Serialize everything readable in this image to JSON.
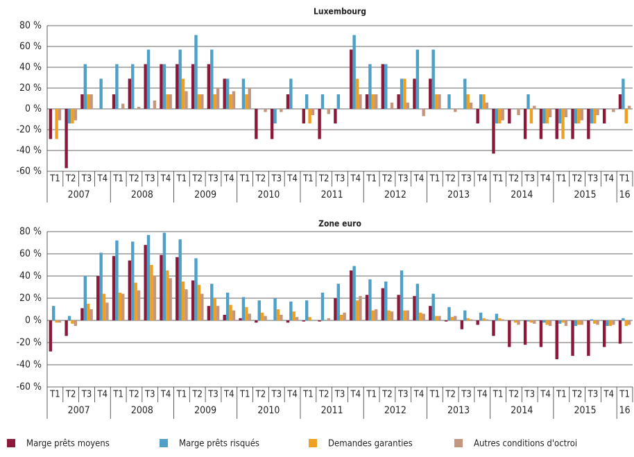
{
  "chart_data": [
    {
      "type": "bar",
      "title": "Luxembourg",
      "categories": [
        "T1",
        "T2",
        "T3",
        "T4",
        "T1",
        "T2",
        "T3",
        "T4",
        "T1",
        "T2",
        "T3",
        "T4",
        "T1",
        "T2",
        "T3",
        "T4",
        "T1",
        "T2",
        "T3",
        "T4",
        "T1",
        "T2",
        "T3",
        "T4",
        "T1",
        "T2",
        "T3",
        "T4",
        "T1",
        "T2",
        "T3",
        "T4",
        "T1",
        "T2",
        "T3",
        "T4",
        "T1"
      ],
      "years": [
        "2007",
        "2008",
        "2009",
        "2010",
        "2011",
        "2012",
        "2013",
        "2014",
        "2015",
        "16"
      ],
      "ylim": [
        -60,
        80
      ],
      "yticks": [
        {
          "value": -60,
          "label": "-60 %"
        },
        {
          "value": -40,
          "label": "-40 %"
        },
        {
          "value": -20,
          "label": "-20 %"
        },
        {
          "value": 0,
          "label": "0 %"
        },
        {
          "value": 20,
          "label": "20 %"
        },
        {
          "value": 40,
          "label": "40 %"
        },
        {
          "value": 60,
          "label": "60 %"
        },
        {
          "value": 80,
          "label": "80 %"
        }
      ],
      "grid": true,
      "series": [
        {
          "name": "Marge prêts moyens",
          "color": "#8b1a3a",
          "values": [
            -29,
            -57,
            14,
            0,
            14,
            29,
            43,
            43,
            43,
            43,
            43,
            29,
            0,
            -29,
            -29,
            14,
            -14,
            -29,
            -14,
            57,
            14,
            43,
            14,
            29,
            29,
            0,
            0,
            -14,
            -43,
            -14,
            -29,
            -29,
            -29,
            -29,
            -29,
            -14,
            14
          ]
        },
        {
          "name": "Marge prêts risqués",
          "color": "#4fa0c8",
          "values": [
            0,
            -14,
            43,
            29,
            43,
            43,
            57,
            43,
            57,
            71,
            57,
            29,
            29,
            0,
            -14,
            29,
            14,
            14,
            14,
            71,
            43,
            43,
            29,
            57,
            57,
            14,
            29,
            14,
            -14,
            0,
            14,
            -14,
            -14,
            -14,
            -14,
            0,
            29
          ]
        },
        {
          "name": "Demandes garanties",
          "color": "#f0a020",
          "values": [
            -29,
            -14,
            14,
            0,
            0,
            0,
            0,
            14,
            29,
            14,
            14,
            14,
            14,
            0,
            0,
            0,
            -14,
            0,
            0,
            29,
            14,
            0,
            29,
            0,
            14,
            0,
            14,
            14,
            -14,
            0,
            -14,
            -14,
            -29,
            -14,
            -14,
            0,
            -14
          ]
        },
        {
          "name": "Autres conditions d'octroi",
          "color": "#c4967e",
          "values": [
            -11,
            -11,
            14,
            0,
            5,
            2,
            8,
            14,
            17,
            14,
            20,
            17,
            20,
            -3,
            -3,
            0,
            -6,
            -5,
            0,
            14,
            14,
            6,
            6,
            -7,
            14,
            -3,
            6,
            6,
            -11,
            -6,
            3,
            -8,
            -8,
            -11,
            -6,
            -3,
            3
          ]
        }
      ]
    },
    {
      "type": "bar",
      "title": "Zone euro",
      "categories": [
        "T1",
        "T2",
        "T3",
        "T4",
        "T1",
        "T2",
        "T3",
        "T4",
        "T1",
        "T2",
        "T3",
        "T4",
        "T1",
        "T2",
        "T3",
        "T4",
        "T1",
        "T2",
        "T3",
        "T4",
        "T1",
        "T2",
        "T3",
        "T4",
        "T1",
        "T2",
        "T3",
        "T4",
        "T1",
        "T2",
        "T3",
        "T4",
        "T1",
        "T2",
        "T3",
        "T4",
        "T1"
      ],
      "years": [
        "2007",
        "2008",
        "2009",
        "2010",
        "2011",
        "2012",
        "2013",
        "2014",
        "2015",
        "16"
      ],
      "ylim": [
        -60,
        80
      ],
      "yticks": [
        {
          "value": -60,
          "label": "-60 %"
        },
        {
          "value": -40,
          "label": "-40 %"
        },
        {
          "value": -20,
          "label": "-20 %"
        },
        {
          "value": 0,
          "label": "0 %"
        },
        {
          "value": 20,
          "label": "20 %"
        },
        {
          "value": 40,
          "label": "40 %"
        },
        {
          "value": 60,
          "label": "60 %"
        },
        {
          "value": 80,
          "label": "80 %"
        }
      ],
      "grid": true,
      "series": [
        {
          "color": "#8b1a3a",
          "values": [
            -28,
            -14,
            11,
            40,
            58,
            54,
            68,
            59,
            57,
            36,
            13,
            5,
            2,
            -2,
            0,
            -2,
            -1,
            -1,
            20,
            45,
            23,
            29,
            23,
            22,
            13,
            -1,
            -8,
            -4,
            -14,
            -24,
            -22,
            -24,
            -35,
            -32,
            -32,
            -24,
            -21
          ]
        },
        {
          "color": "#4fa0c8",
          "values": [
            13,
            4,
            40,
            61,
            72,
            71,
            77,
            79,
            73,
            56,
            33,
            25,
            21,
            18,
            20,
            17,
            18,
            25,
            33,
            49,
            37,
            35,
            45,
            33,
            24,
            12,
            9,
            7,
            6,
            0,
            -1,
            -2,
            -3,
            -5,
            1,
            -5,
            2
          ]
        },
        {
          "color": "#f0a020",
          "values": [
            -2,
            -3,
            15,
            24,
            25,
            34,
            50,
            45,
            35,
            32,
            20,
            14,
            12,
            7,
            10,
            8,
            3,
            0,
            5,
            18,
            9,
            9,
            9,
            7,
            4,
            3,
            2,
            2,
            2,
            -2,
            -2,
            -4,
            -2,
            -4,
            -3,
            -5,
            -5
          ]
        },
        {
          "color": "#c4967e",
          "values": [
            -2,
            -5,
            10,
            16,
            24,
            27,
            40,
            38,
            28,
            24,
            13,
            9,
            6,
            4,
            5,
            3,
            0,
            2,
            7,
            22,
            10,
            8,
            9,
            6,
            4,
            4,
            1,
            1,
            1,
            -4,
            -3,
            -5,
            -5,
            -4,
            -4,
            -4,
            -4
          ]
        }
      ]
    }
  ]
}
